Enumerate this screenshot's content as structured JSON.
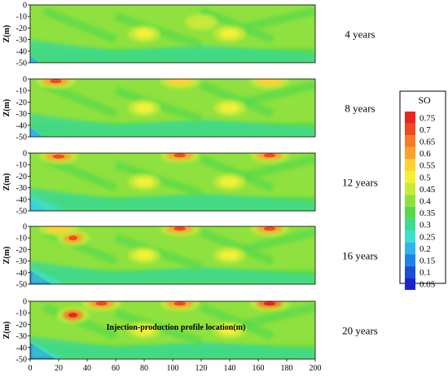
{
  "chart_data": {
    "type": "heatmap",
    "variable_label": "SO",
    "colorbar_levels": [
      "0.75",
      "0.7",
      "0.65",
      "0.6",
      "0.55",
      "0.5",
      "0.45",
      "0.4",
      "0.35",
      "0.3",
      "0.25",
      "0.2",
      "0.15",
      "0.1",
      "0.05"
    ],
    "colorbar_colors": [
      "#e8261e",
      "#f04a22",
      "#f77a26",
      "#fba32c",
      "#ffd233",
      "#f3f137",
      "#c8ea3a",
      "#8ee13e",
      "#55d94b",
      "#3fd98f",
      "#40e0d0",
      "#2fb4f0",
      "#1f82e6",
      "#1a4fd6",
      "#1c23c8"
    ],
    "ylabel": "Z(m)",
    "xlabel": "Injection-production profile location(m)",
    "x_ticks": [
      "0",
      "20",
      "40",
      "60",
      "80",
      "100",
      "120",
      "140",
      "160",
      "180",
      "200"
    ],
    "y_ticks": [
      "0",
      "-10",
      "-20",
      "-30",
      "-40",
      "-50"
    ],
    "xlim": [
      0,
      200
    ],
    "ylim": [
      -50,
      0
    ],
    "panels": [
      {
        "label": "4 years",
        "hot_spots": [
          {
            "x": 80,
            "z": -25,
            "so": 0.5
          },
          {
            "x": 140,
            "z": -25,
            "so": 0.5
          },
          {
            "x": 120,
            "z": -15,
            "so": 0.45
          }
        ]
      },
      {
        "label": "8 years",
        "hot_spots": [
          {
            "x": 18,
            "z": -2,
            "so": 0.6
          },
          {
            "x": 105,
            "z": -2,
            "so": 0.55
          },
          {
            "x": 168,
            "z": -2,
            "so": 0.55
          },
          {
            "x": 80,
            "z": -25,
            "so": 0.5
          },
          {
            "x": 140,
            "z": -25,
            "so": 0.5
          }
        ]
      },
      {
        "label": "12 years",
        "hot_spots": [
          {
            "x": 20,
            "z": -3,
            "so": 0.6
          },
          {
            "x": 105,
            "z": -2,
            "so": 0.6
          },
          {
            "x": 168,
            "z": -2,
            "so": 0.6
          },
          {
            "x": 80,
            "z": -25,
            "so": 0.5
          },
          {
            "x": 140,
            "z": -25,
            "so": 0.5
          }
        ]
      },
      {
        "label": "16 years",
        "hot_spots": [
          {
            "x": 30,
            "z": -10,
            "so": 0.6
          },
          {
            "x": 20,
            "z": -2,
            "so": 0.55
          },
          {
            "x": 105,
            "z": -2,
            "so": 0.6
          },
          {
            "x": 168,
            "z": -2,
            "so": 0.6
          },
          {
            "x": 80,
            "z": -25,
            "so": 0.5
          },
          {
            "x": 140,
            "z": -25,
            "so": 0.5
          }
        ]
      },
      {
        "label": "20 years",
        "hot_spots": [
          {
            "x": 30,
            "z": -12,
            "so": 0.65
          },
          {
            "x": 50,
            "z": -2,
            "so": 0.6
          },
          {
            "x": 105,
            "z": -2,
            "so": 0.6
          },
          {
            "x": 168,
            "z": -2,
            "so": 0.65
          },
          {
            "x": 80,
            "z": -25,
            "so": 0.5
          },
          {
            "x": 140,
            "z": -25,
            "so": 0.5
          }
        ]
      }
    ]
  }
}
